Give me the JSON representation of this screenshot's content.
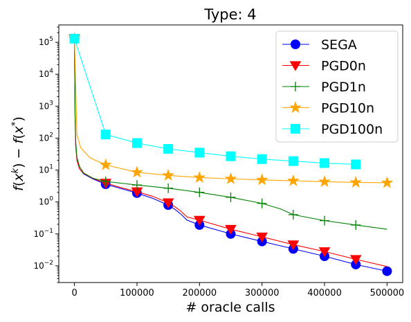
{
  "chart_data": {
    "type": "line",
    "title": "Type: 4",
    "xlabel": "# oracle calls",
    "ylabel": "f(x^k) − f(x*)",
    "xlim": [
      -25000,
      525000
    ],
    "ylim": [
      0.003,
      350000
    ],
    "yscale": "log",
    "grid": false,
    "legend_position": "top-right",
    "x_ticks": [
      0,
      100000,
      200000,
      300000,
      400000,
      500000
    ],
    "x_tick_labels": [
      "0",
      "100000",
      "200000",
      "300000",
      "400000",
      "500000"
    ],
    "y_ticks": [
      0.01,
      0.1,
      1,
      10,
      100,
      1000,
      10000,
      100000
    ],
    "y_tick_labels": [
      {
        "base": "10",
        "exp": "−2"
      },
      {
        "base": "10",
        "exp": "−1"
      },
      {
        "base": "10",
        "exp": "0"
      },
      {
        "base": "10",
        "exp": "1"
      },
      {
        "base": "10",
        "exp": "2"
      },
      {
        "base": "10",
        "exp": "3"
      },
      {
        "base": "10",
        "exp": "4"
      },
      {
        "base": "10",
        "exp": "5"
      }
    ],
    "series": [
      {
        "name": "SEGA",
        "color": "#0000ff",
        "marker": "circle",
        "curve": [
          [
            0,
            130000
          ],
          [
            1000,
            500
          ],
          [
            2000,
            60
          ],
          [
            4000,
            20
          ],
          [
            8000,
            11
          ],
          [
            15000,
            7.5
          ],
          [
            30000,
            5.2
          ],
          [
            50000,
            3.6
          ],
          [
            75000,
            2.6
          ],
          [
            100000,
            1.9
          ],
          [
            125000,
            1.3
          ],
          [
            150000,
            0.8
          ],
          [
            160000,
            0.6
          ],
          [
            170000,
            0.42
          ],
          [
            180000,
            0.27
          ],
          [
            200000,
            0.19
          ],
          [
            250000,
            0.1
          ],
          [
            300000,
            0.058
          ],
          [
            350000,
            0.034
          ],
          [
            400000,
            0.02
          ],
          [
            450000,
            0.011
          ],
          [
            500000,
            0.0068
          ]
        ],
        "markers": [
          [
            0,
            130000
          ],
          [
            50000,
            3.6
          ],
          [
            100000,
            1.9
          ],
          [
            150000,
            0.8
          ],
          [
            200000,
            0.19
          ],
          [
            250000,
            0.1
          ],
          [
            300000,
            0.058
          ],
          [
            350000,
            0.034
          ],
          [
            400000,
            0.02
          ],
          [
            450000,
            0.011
          ],
          [
            500000,
            0.0068
          ]
        ]
      },
      {
        "name": "PGD0n",
        "color": "#ff0000",
        "marker": "triangle-down",
        "curve": [
          [
            0,
            130000
          ],
          [
            1000,
            500
          ],
          [
            2000,
            60
          ],
          [
            4000,
            20
          ],
          [
            8000,
            11
          ],
          [
            15000,
            7.8
          ],
          [
            30000,
            5.4
          ],
          [
            50000,
            3.9
          ],
          [
            75000,
            2.8
          ],
          [
            100000,
            2.1
          ],
          [
            125000,
            1.5
          ],
          [
            150000,
            0.95
          ],
          [
            160000,
            0.72
          ],
          [
            170000,
            0.52
          ],
          [
            180000,
            0.34
          ],
          [
            200000,
            0.27
          ],
          [
            250000,
            0.14
          ],
          [
            300000,
            0.081
          ],
          [
            350000,
            0.046
          ],
          [
            400000,
            0.028
          ],
          [
            450000,
            0.016
          ],
          [
            500000,
            0.0095
          ]
        ],
        "markers": [
          [
            0,
            130000
          ],
          [
            50000,
            3.9
          ],
          [
            100000,
            2.1
          ],
          [
            150000,
            0.95
          ],
          [
            200000,
            0.27
          ],
          [
            250000,
            0.14
          ],
          [
            300000,
            0.081
          ],
          [
            350000,
            0.046
          ],
          [
            400000,
            0.028
          ],
          [
            450000,
            0.016
          ]
        ]
      },
      {
        "name": "PGD1n",
        "color": "#008000",
        "marker": "plus",
        "curve": [
          [
            0,
            130000
          ],
          [
            1000,
            600
          ],
          [
            2000,
            80
          ],
          [
            4000,
            25
          ],
          [
            8000,
            13
          ],
          [
            15000,
            8
          ],
          [
            30000,
            5.5
          ],
          [
            50000,
            4.4
          ],
          [
            100000,
            3.4
          ],
          [
            150000,
            2.7
          ],
          [
            200000,
            2.0
          ],
          [
            250000,
            1.4
          ],
          [
            300000,
            0.9
          ],
          [
            330000,
            0.6
          ],
          [
            350000,
            0.4
          ],
          [
            400000,
            0.26
          ],
          [
            450000,
            0.19
          ],
          [
            500000,
            0.14
          ]
        ],
        "markers": [
          [
            0,
            130000
          ],
          [
            50000,
            4.4
          ],
          [
            100000,
            3.4
          ],
          [
            150000,
            2.7
          ],
          [
            200000,
            2.0
          ],
          [
            250000,
            1.4
          ],
          [
            300000,
            0.9
          ],
          [
            350000,
            0.4
          ],
          [
            400000,
            0.26
          ],
          [
            450000,
            0.19
          ]
        ]
      },
      {
        "name": "PGD10n",
        "color": "#ffa500",
        "marker": "star",
        "curve": [
          [
            0,
            130000
          ],
          [
            2000,
            5000
          ],
          [
            4000,
            130
          ],
          [
            10000,
            50
          ],
          [
            25000,
            24
          ],
          [
            50000,
            14.5
          ],
          [
            100000,
            8.5
          ],
          [
            150000,
            6.8
          ],
          [
            200000,
            5.8
          ],
          [
            250000,
            5.3
          ],
          [
            300000,
            4.9
          ],
          [
            350000,
            4.6
          ],
          [
            400000,
            4.3
          ],
          [
            450000,
            4.1
          ],
          [
            500000,
            4.0
          ]
        ],
        "markers": [
          [
            0,
            130000
          ],
          [
            50000,
            14.5
          ],
          [
            100000,
            8.5
          ],
          [
            150000,
            6.8
          ],
          [
            200000,
            5.8
          ],
          [
            250000,
            5.3
          ],
          [
            300000,
            4.9
          ],
          [
            350000,
            4.6
          ],
          [
            400000,
            4.3
          ],
          [
            450000,
            4.1
          ],
          [
            500000,
            4.0
          ]
        ]
      },
      {
        "name": "PGD100n",
        "color": "#00ffff",
        "marker": "square",
        "curve": [
          [
            0,
            130000
          ],
          [
            50000,
            130
          ],
          [
            100000,
            70
          ],
          [
            150000,
            46
          ],
          [
            200000,
            35
          ],
          [
            250000,
            27
          ],
          [
            300000,
            22
          ],
          [
            350000,
            19
          ],
          [
            400000,
            16.5
          ],
          [
            450000,
            15
          ]
        ],
        "markers": [
          [
            0,
            130000
          ],
          [
            50000,
            130
          ],
          [
            100000,
            70
          ],
          [
            150000,
            46
          ],
          [
            200000,
            35
          ],
          [
            250000,
            27
          ],
          [
            300000,
            22
          ],
          [
            350000,
            19
          ],
          [
            400000,
            16.5
          ],
          [
            450000,
            15
          ]
        ]
      }
    ]
  }
}
